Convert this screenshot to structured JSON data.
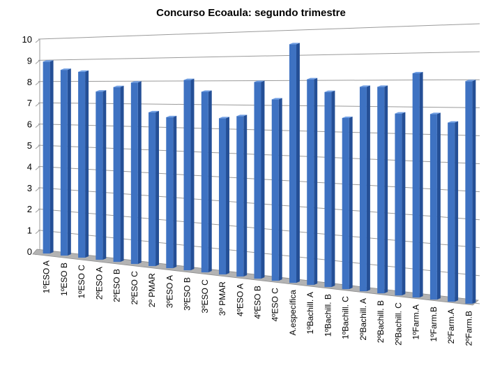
{
  "chart_data": {
    "type": "bar",
    "title": "Concurso Ecoaula: segundo trimestre",
    "xlabel": "",
    "ylabel": "",
    "ylim": [
      0,
      10
    ],
    "yticks": [
      "0",
      "1",
      "2",
      "3",
      "4",
      "5",
      "6",
      "7",
      "8",
      "9",
      "10"
    ],
    "grid": true,
    "legend": "none",
    "colors": {
      "bar": "#3e72c2",
      "bar_light": "#6f9ee3",
      "bar_dark": "#244f96",
      "floor": "#b3b3b3",
      "grid": "#9a9a9a"
    },
    "categories": [
      "1ºESO A",
      "1ºESO B",
      "1ºESO C",
      "2ºESO A",
      "2ºESO B",
      "2ºESO C",
      "2º PMAR",
      "3ºESO A",
      "3ºESO B",
      "3ºESO C",
      "3º PMAR",
      "4ºESO A",
      "4ºESO B",
      "4ºESO C",
      "A.específica",
      "1ºBachill. A",
      "1ºBachill. B",
      "1ºBachill. C",
      "2ºBachill. A",
      "2ºBachill. B",
      "2ºBachill. C",
      "1ºFarm.A",
      "1ºFarm.B",
      "2ºFarm.A",
      "2ºFarm.B"
    ],
    "values": [
      9.0,
      8.6,
      8.5,
      7.6,
      7.8,
      8.0,
      6.7,
      6.5,
      8.1,
      7.6,
      6.5,
      6.6,
      8.0,
      7.3,
      9.5,
      8.1,
      7.6,
      6.6,
      7.8,
      7.8,
      6.8,
      8.3,
      6.8,
      6.5,
      8.0
    ]
  }
}
